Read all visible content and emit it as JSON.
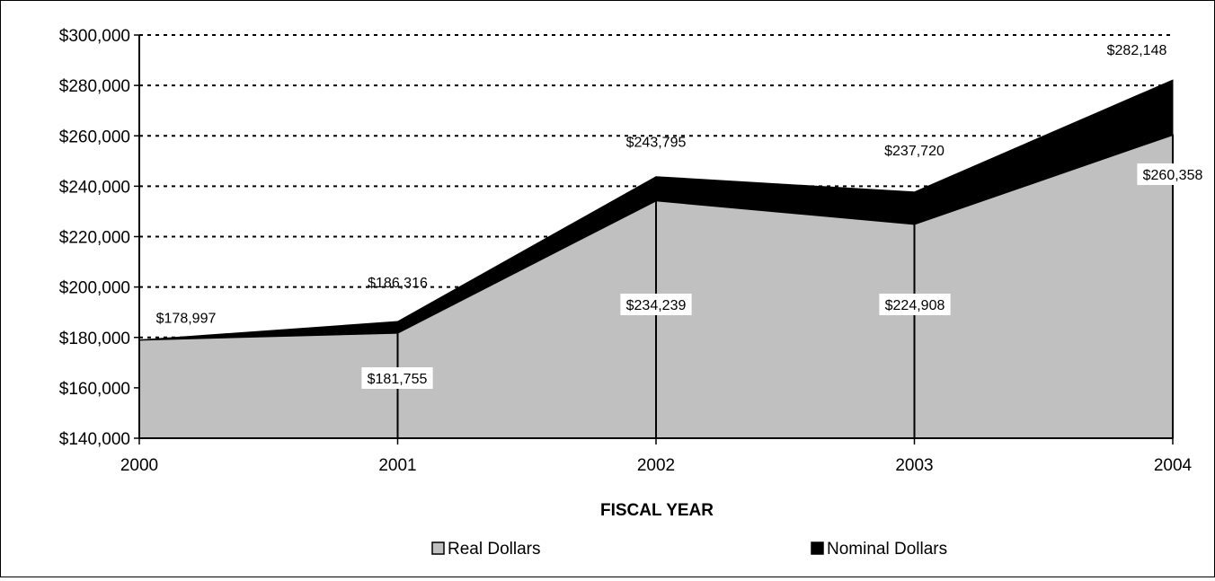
{
  "chart_data": {
    "type": "area",
    "title": "",
    "xlabel": "FISCAL YEAR",
    "ylabel": "",
    "categories": [
      "2000",
      "2001",
      "2002",
      "2003",
      "2004"
    ],
    "ylim": [
      140000,
      300000
    ],
    "yticks": [
      140000,
      160000,
      180000,
      200000,
      220000,
      240000,
      260000,
      280000,
      300000
    ],
    "ytick_labels": [
      "$140,000",
      "$160,000",
      "$180,000",
      "$200,000",
      "$220,000",
      "$240,000",
      "$260,000",
      "$280,000",
      "$300,000"
    ],
    "grid": "horizontal dotted",
    "legend_position": "bottom",
    "stacked_overlay": true,
    "series": [
      {
        "name": "Real Dollars",
        "color": "#c0c0c0",
        "values": [
          178997,
          181755,
          234239,
          224908,
          260358
        ],
        "labels": [
          "",
          "$181,755",
          "$234,239",
          "$224,908",
          "$260,358"
        ]
      },
      {
        "name": "Nominal Dollars",
        "color": "#000000",
        "values": [
          178997,
          186316,
          243795,
          237720,
          282148
        ],
        "labels": [
          "$178,997",
          "$186,316",
          "$243,795",
          "$237,720",
          "$282,148"
        ]
      }
    ]
  }
}
